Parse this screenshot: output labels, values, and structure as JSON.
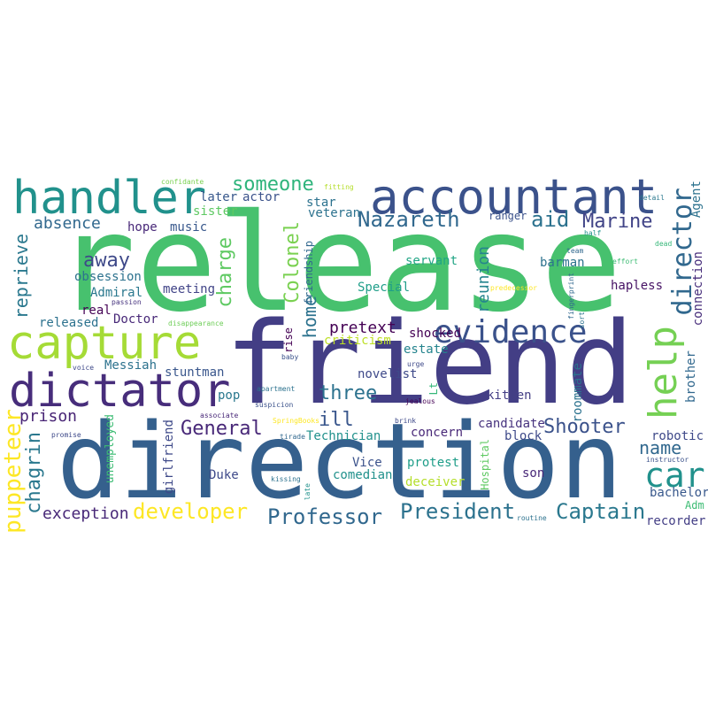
{
  "words": [
    {
      "text": "release",
      "color": "#47c16e"
    },
    {
      "text": "friend",
      "color": "#433e85"
    },
    {
      "text": "direction",
      "color": "#35608d"
    },
    {
      "text": "accountant",
      "color": "#3b528b"
    },
    {
      "text": "handler",
      "color": "#21918c"
    },
    {
      "text": "capture",
      "color": "#a5db36"
    },
    {
      "text": "dictator",
      "color": "#472d7b"
    },
    {
      "text": "evidence",
      "color": "#3b528b"
    },
    {
      "text": "help",
      "color": "#75d054"
    },
    {
      "text": "director",
      "color": "#31688e"
    },
    {
      "text": "car",
      "color": "#21918c"
    },
    {
      "text": "puppeteer",
      "color": "#fde725"
    },
    {
      "text": "chagrin",
      "color": "#2a788e"
    },
    {
      "text": "developer",
      "color": "#fde725"
    },
    {
      "text": "Professor",
      "color": "#31688e"
    },
    {
      "text": "President",
      "color": "#2c728e"
    },
    {
      "text": "Captain",
      "color": "#2a788e"
    },
    {
      "text": "Marine",
      "color": "#414487"
    },
    {
      "text": "Nazareth",
      "color": "#31688e"
    },
    {
      "text": "aid",
      "color": "#2c728e"
    },
    {
      "text": "someone",
      "color": "#2fb47c"
    },
    {
      "text": "charge",
      "color": "#5ec962"
    },
    {
      "text": "Colonel",
      "color": "#7ad151"
    },
    {
      "text": "away",
      "color": "#3e4989"
    },
    {
      "text": "reprieve",
      "color": "#2a788e"
    },
    {
      "text": "absence",
      "color": "#31688e"
    },
    {
      "text": "General",
      "color": "#482878"
    },
    {
      "text": "Shooter",
      "color": "#3b528b"
    },
    {
      "text": "name",
      "color": "#31688e"
    },
    {
      "text": "three",
      "color": "#2c728e"
    },
    {
      "text": "ill",
      "color": "#39568c"
    },
    {
      "text": "home",
      "color": "#2c728e"
    },
    {
      "text": "prison",
      "color": "#482475"
    },
    {
      "text": "exception",
      "color": "#482878"
    },
    {
      "text": "pretext",
      "color": "#440154"
    },
    {
      "text": "reunion",
      "color": "#25848e"
    },
    {
      "text": "Agent",
      "color": "#2c728e"
    },
    {
      "text": "connection",
      "color": "#472d7b"
    },
    {
      "text": "brother",
      "color": "#31688e"
    },
    {
      "text": "robotic",
      "color": "#3e4989"
    },
    {
      "text": "bachelor",
      "color": "#38588c"
    },
    {
      "text": "recorder",
      "color": "#433e85"
    },
    {
      "text": "Adm",
      "color": "#3dbc74"
    },
    {
      "text": "instructor",
      "color": "#3b528b"
    },
    {
      "text": "hapless",
      "color": "#471365"
    },
    {
      "text": "barman",
      "color": "#2c728e"
    },
    {
      "text": "servant",
      "color": "#21a585"
    },
    {
      "text": "shocked",
      "color": "#440154"
    },
    {
      "text": "estate",
      "color": "#25848e"
    },
    {
      "text": "criticism",
      "color": "#bddf26"
    },
    {
      "text": "Special",
      "color": "#1f9e89"
    },
    {
      "text": "novelist",
      "color": "#3e4989"
    },
    {
      "text": "candidate",
      "color": "#46327e"
    },
    {
      "text": "kitten",
      "color": "#433e85"
    },
    {
      "text": "roommate",
      "color": "#2c728e"
    },
    {
      "text": "block",
      "color": "#3e4989"
    },
    {
      "text": "concern",
      "color": "#482878"
    },
    {
      "text": "Technician",
      "color": "#21918c"
    },
    {
      "text": "Vice",
      "color": "#3b528b"
    },
    {
      "text": "protest",
      "color": "#1f9e89"
    },
    {
      "text": "deceiver",
      "color": "#b5de2b"
    },
    {
      "text": "son",
      "color": "#482878"
    },
    {
      "text": "Hospital",
      "color": "#5ec962"
    },
    {
      "text": "comedian",
      "color": "#21918c"
    },
    {
      "text": "Duke",
      "color": "#3e4989"
    },
    {
      "text": "girlfriend",
      "color": "#3e4989"
    },
    {
      "text": "unemployed",
      "color": "#3dbc74"
    },
    {
      "text": "stuntman",
      "color": "#39568c"
    },
    {
      "text": "pop",
      "color": "#2a788e"
    },
    {
      "text": "Messiah",
      "color": "#2c728e"
    },
    {
      "text": "Doctor",
      "color": "#482878"
    },
    {
      "text": "real",
      "color": "#440154"
    },
    {
      "text": "released",
      "color": "#2c728e"
    },
    {
      "text": "Admiral",
      "color": "#2a788e"
    },
    {
      "text": "obsession",
      "color": "#2c728e"
    },
    {
      "text": "meeting",
      "color": "#414487"
    },
    {
      "text": "hope",
      "color": "#482878"
    },
    {
      "text": "music",
      "color": "#38588c"
    },
    {
      "text": "later",
      "color": "#38588c"
    },
    {
      "text": "actor",
      "color": "#3b528b"
    },
    {
      "text": "sister",
      "color": "#5ec962"
    },
    {
      "text": "star",
      "color": "#2c728e"
    },
    {
      "text": "veteran",
      "color": "#2c728e"
    },
    {
      "text": "friendship",
      "color": "#31688e"
    },
    {
      "text": "rise",
      "color": "#440154"
    },
    {
      "text": "ranger",
      "color": "#3b528b"
    },
    {
      "text": "Lt",
      "color": "#35b779"
    },
    {
      "text": "fitting",
      "color": "#b5de2b"
    },
    {
      "text": "confidante",
      "color": "#7ad151"
    },
    {
      "text": "passion",
      "color": "#46327e"
    },
    {
      "text": "disappearance",
      "color": "#6ece58"
    },
    {
      "text": "voice",
      "color": "#3e4989"
    },
    {
      "text": "promise",
      "color": "#3e4989"
    },
    {
      "text": "associate",
      "color": "#482878"
    },
    {
      "text": "baby",
      "color": "#3b528b"
    },
    {
      "text": "apartment",
      "color": "#2c728e"
    },
    {
      "text": "suspicion",
      "color": "#3b528b"
    },
    {
      "text": "SpringBooks",
      "color": "#fde725"
    },
    {
      "text": "tirade",
      "color": "#31688e"
    },
    {
      "text": "kissing",
      "color": "#2c728e"
    },
    {
      "text": "late",
      "color": "#21918c"
    },
    {
      "text": "urge",
      "color": "#3e4989"
    },
    {
      "text": "jealous",
      "color": "#440154"
    },
    {
      "text": "brink",
      "color": "#3e4989"
    },
    {
      "text": "routine",
      "color": "#2c728e"
    },
    {
      "text": "predecessor",
      "color": "#fde725"
    },
    {
      "text": "fingerprint",
      "color": "#31688e"
    },
    {
      "text": "sort",
      "color": "#2c728e"
    },
    {
      "text": "half",
      "color": "#21918c"
    },
    {
      "text": "team",
      "color": "#31688e"
    },
    {
      "text": "effort",
      "color": "#3dbc74"
    },
    {
      "text": "dead",
      "color": "#35b779"
    },
    {
      "text": "detail",
      "color": "#2a788e"
    }
  ]
}
